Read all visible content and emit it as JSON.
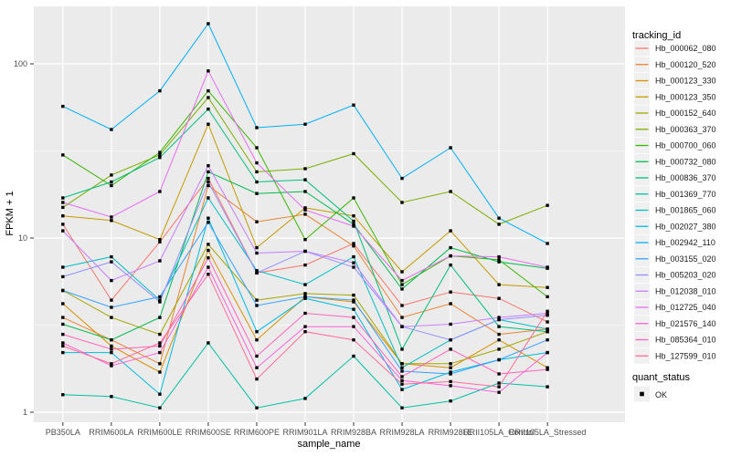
{
  "chart_data": {
    "type": "line",
    "title": "",
    "xlabel": "sample_name",
    "ylabel": "FPKM + 1",
    "y_scale": "log10",
    "y_ticks": [
      1,
      10,
      100
    ],
    "y_minor_ticks": [
      3.162,
      31.62
    ],
    "ylim": [
      0.89,
      215
    ],
    "grid": true,
    "legend_position": "right",
    "point_shape": "filled-square",
    "point_color": "#000000",
    "categories": [
      "PB350LA",
      "RRIM600LA",
      "RRIM600LE",
      "RRIM600SE",
      "RRIM600PE",
      "RRIM901LA",
      "RRIM928BA",
      "RRIM928LA",
      "RRIM928LE",
      "RRII105LA_Control",
      "RRII105LA_Stressed"
    ],
    "series": [
      {
        "name": "Hb_000062_080",
        "color": "#F8766D",
        "values": [
          12,
          4.4,
          9.5,
          22,
          6.3,
          7.0,
          9.3,
          4.1,
          4.9,
          4.5,
          3.3
        ]
      },
      {
        "name": "Hb_000120_520",
        "color": "#EA8331",
        "values": [
          3.5,
          2.6,
          1.9,
          20,
          12.4,
          13.7,
          9.0,
          3.5,
          4.2,
          2.8,
          3.0
        ]
      },
      {
        "name": "Hb_000123_330",
        "color": "#D89000",
        "values": [
          4.2,
          2.4,
          1.7,
          8.5,
          2.6,
          4.6,
          4.3,
          1.9,
          1.8,
          2.6,
          1.8
        ]
      },
      {
        "name": "Hb_000123_350",
        "color": "#C49A00",
        "values": [
          13.4,
          12.6,
          9.8,
          45,
          8.8,
          14.9,
          13.4,
          6.4,
          11,
          5.4,
          5.2
        ]
      },
      {
        "name": "Hb_000152_640",
        "color": "#A3A500",
        "values": [
          5.0,
          3.5,
          2.8,
          9.2,
          4.4,
          4.8,
          4.7,
          1.9,
          1.9,
          2.3,
          2.9
        ]
      },
      {
        "name": "Hb_000363_370",
        "color": "#7CAE00",
        "values": [
          15,
          23,
          30,
          64,
          24,
          25,
          30.5,
          16,
          18.5,
          12,
          15.4
        ]
      },
      {
        "name": "Hb_000700_060",
        "color": "#39B600",
        "values": [
          30,
          20,
          31,
          70,
          33,
          9.8,
          17,
          5.4,
          7.9,
          7.5,
          4.6
        ]
      },
      {
        "name": "Hb_000732_080",
        "color": "#00BB4E",
        "values": [
          3.2,
          2.6,
          3.5,
          24,
          18,
          18.5,
          12,
          5.1,
          8.8,
          7.3,
          6.7
        ]
      },
      {
        "name": "Hb_000836_370",
        "color": "#00BF7D",
        "values": [
          17,
          21,
          29,
          55,
          21,
          21.6,
          12.5,
          2.3,
          7.0,
          3.1,
          2.9
        ]
      },
      {
        "name": "Hb_001369_770",
        "color": "#00C1A3",
        "values": [
          1.26,
          1.23,
          1.06,
          2.5,
          1.06,
          1.2,
          2.1,
          1.06,
          1.16,
          1.47,
          1.4
        ]
      },
      {
        "name": "Hb_001865_060",
        "color": "#00BFC4",
        "values": [
          6.8,
          7.8,
          4.4,
          17,
          6.5,
          5.4,
          7.8,
          1.8,
          2.6,
          3.4,
          3.0
        ]
      },
      {
        "name": "Hb_002027_380",
        "color": "#00BAE0",
        "values": [
          2.2,
          2.2,
          1.27,
          13,
          2.9,
          4.5,
          3.9,
          1.35,
          1.7,
          2.0,
          2.2
        ]
      },
      {
        "name": "Hb_002942_110",
        "color": "#00B0F6",
        "values": [
          57,
          42,
          70,
          170,
          43,
          45,
          58,
          22,
          33,
          13,
          9.3
        ]
      },
      {
        "name": "Hb_003155_020",
        "color": "#35A2FF",
        "values": [
          5.0,
          4.0,
          4.6,
          12.3,
          4.1,
          4.6,
          4.4,
          1.72,
          1.66,
          2.0,
          2.6
        ]
      },
      {
        "name": "Hb_005203_020",
        "color": "#9590FF",
        "values": [
          6.0,
          7.3,
          4.3,
          21,
          6.3,
          8.4,
          6.8,
          3.1,
          2.6,
          3.4,
          3.6
        ]
      },
      {
        "name": "Hb_012038_010",
        "color": "#C77CFF",
        "values": [
          11,
          5.7,
          7.4,
          26,
          8.2,
          8.4,
          7.2,
          3.1,
          3.2,
          3.5,
          3.7
        ]
      },
      {
        "name": "Hb_012725_040",
        "color": "#E76BF3",
        "values": [
          16,
          13.2,
          18.5,
          91,
          27,
          14.5,
          11.7,
          5.7,
          7.9,
          7.8,
          6.8
        ]
      },
      {
        "name": "Hb_021576_140",
        "color": "#FA62DB",
        "values": [
          2.5,
          1.85,
          2.2,
          6.8,
          1.8,
          3.1,
          3.1,
          1.52,
          1.42,
          1.3,
          2.2
        ]
      },
      {
        "name": "Hb_085364_010",
        "color": "#FF62BC",
        "values": [
          2.8,
          2.3,
          2.4,
          7.7,
          2.1,
          3.7,
          3.5,
          1.6,
          2.3,
          1.66,
          1.76
        ]
      },
      {
        "name": "Hb_127599_010",
        "color": "#FF6A98",
        "values": [
          2.4,
          1.9,
          2.5,
          6.2,
          1.55,
          2.9,
          2.6,
          1.45,
          1.5,
          1.4,
          3.8
        ]
      }
    ]
  },
  "legend": {
    "tracking_title": "tracking_id",
    "quant_title": "quant_status",
    "quant_items": [
      {
        "label": "OK"
      }
    ]
  },
  "style": {
    "panel_bg": "#EBEBEB",
    "grid_color": "#FFFFFF",
    "legend_key_bg": "#F0F0F0",
    "tick_text_color": "#4D4D4D",
    "tick_mark_color": "#333333",
    "point_color": "#000000"
  }
}
